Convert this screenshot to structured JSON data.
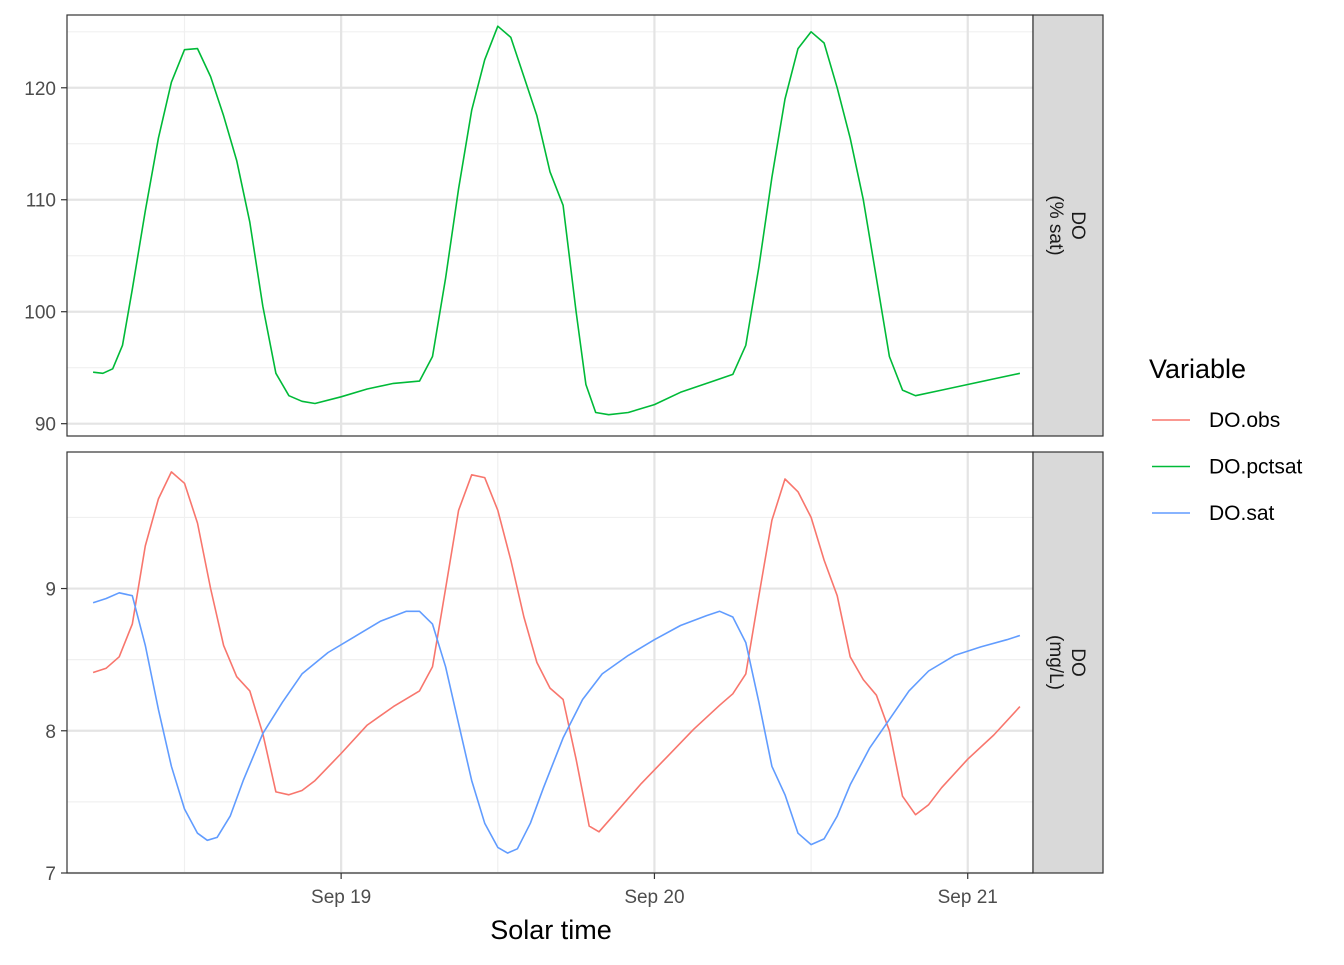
{
  "chart_data": {
    "type": "line",
    "xlabel": "Solar time",
    "x_ticks": [
      "Sep 19",
      "Sep 20",
      "Sep 21"
    ],
    "x_range": [
      "Sep 18 03:00",
      "Sep 21 05:00"
    ],
    "grid": true,
    "legend": {
      "title": "Variable",
      "placement": "right",
      "entries": [
        {
          "name": "DO.obs",
          "color": "#F8766D"
        },
        {
          "name": "DO.pctsat",
          "color": "#00BA38"
        },
        {
          "name": "DO.sat",
          "color": "#619CFF"
        }
      ]
    },
    "panels": [
      {
        "strip_label": [
          "DO",
          "(% sat)"
        ],
        "ylim": [
          88.9,
          126.5
        ],
        "y_ticks": [
          90,
          100,
          110,
          120
        ],
        "series": [
          {
            "name": "DO.pctsat",
            "color": "#00BA38",
            "points": [
              [
                "Sep 18 05:00",
                94.6
              ],
              [
                "Sep 18 05:45",
                94.5
              ],
              [
                "Sep 18 06:30",
                94.9
              ],
              [
                "Sep 18 07:15",
                97.0
              ],
              [
                "Sep 18 08:00",
                102.0
              ],
              [
                "Sep 18 09:00",
                109.0
              ],
              [
                "Sep 18 10:00",
                115.5
              ],
              [
                "Sep 18 11:00",
                120.5
              ],
              [
                "Sep 18 12:00",
                123.4
              ],
              [
                "Sep 18 13:00",
                123.5
              ],
              [
                "Sep 18 14:00",
                121.0
              ],
              [
                "Sep 18 15:00",
                117.5
              ],
              [
                "Sep 18 16:00",
                113.5
              ],
              [
                "Sep 18 17:00",
                108.0
              ],
              [
                "Sep 18 18:00",
                100.5
              ],
              [
                "Sep 18 19:00",
                94.5
              ],
              [
                "Sep 18 20:00",
                92.5
              ],
              [
                "Sep 18 21:00",
                92.0
              ],
              [
                "Sep 18 22:00",
                91.8
              ],
              [
                "Sep 19 00:00",
                92.4
              ],
              [
                "Sep 19 02:00",
                93.1
              ],
              [
                "Sep 19 04:00",
                93.6
              ],
              [
                "Sep 19 06:00",
                93.8
              ],
              [
                "Sep 19 07:00",
                96.0
              ],
              [
                "Sep 19 08:00",
                103.0
              ],
              [
                "Sep 19 09:00",
                111.0
              ],
              [
                "Sep 19 10:00",
                118.0
              ],
              [
                "Sep 19 11:00",
                122.5
              ],
              [
                "Sep 19 12:00",
                125.5
              ],
              [
                "Sep 19 13:00",
                124.5
              ],
              [
                "Sep 19 14:00",
                121.0
              ],
              [
                "Sep 19 15:00",
                117.5
              ],
              [
                "Sep 19 16:00",
                112.5
              ],
              [
                "Sep 19 17:00",
                109.5
              ],
              [
                "Sep 19 18:00",
                100.0
              ],
              [
                "Sep 19 18:45",
                93.5
              ],
              [
                "Sep 19 19:30",
                91.0
              ],
              [
                "Sep 19 20:30",
                90.8
              ],
              [
                "Sep 19 22:00",
                91.0
              ],
              [
                "Sep 20 00:00",
                91.7
              ],
              [
                "Sep 20 02:00",
                92.8
              ],
              [
                "Sep 20 04:00",
                93.6
              ],
              [
                "Sep 20 06:00",
                94.4
              ],
              [
                "Sep 20 07:00",
                97.0
              ],
              [
                "Sep 20 08:00",
                104.0
              ],
              [
                "Sep 20 09:00",
                112.0
              ],
              [
                "Sep 20 10:00",
                119.0
              ],
              [
                "Sep 20 11:00",
                123.5
              ],
              [
                "Sep 20 12:00",
                125.0
              ],
              [
                "Sep 20 13:00",
                124.0
              ],
              [
                "Sep 20 14:00",
                120.0
              ],
              [
                "Sep 20 15:00",
                115.5
              ],
              [
                "Sep 20 16:00",
                110.0
              ],
              [
                "Sep 20 17:00",
                103.0
              ],
              [
                "Sep 20 18:00",
                96.0
              ],
              [
                "Sep 20 19:00",
                93.0
              ],
              [
                "Sep 20 20:00",
                92.5
              ],
              [
                "Sep 20 22:00",
                93.0
              ],
              [
                "Sep 21 00:00",
                93.5
              ],
              [
                "Sep 21 02:00",
                94.0
              ],
              [
                "Sep 21 04:00",
                94.5
              ]
            ]
          }
        ]
      },
      {
        "strip_label": [
          "DO",
          "(mg/L)"
        ],
        "ylim": [
          7.0,
          9.96
        ],
        "y_ticks": [
          7,
          8,
          9
        ],
        "series": [
          {
            "name": "DO.obs",
            "color": "#F8766D",
            "points": [
              [
                "Sep 18 05:00",
                8.41
              ],
              [
                "Sep 18 06:00",
                8.44
              ],
              [
                "Sep 18 07:00",
                8.52
              ],
              [
                "Sep 18 08:00",
                8.75
              ],
              [
                "Sep 18 09:00",
                9.3
              ],
              [
                "Sep 18 10:00",
                9.63
              ],
              [
                "Sep 18 11:00",
                9.82
              ],
              [
                "Sep 18 12:00",
                9.74
              ],
              [
                "Sep 18 13:00",
                9.46
              ],
              [
                "Sep 18 14:00",
                9.0
              ],
              [
                "Sep 18 15:00",
                8.6
              ],
              [
                "Sep 18 16:00",
                8.38
              ],
              [
                "Sep 18 17:00",
                8.28
              ],
              [
                "Sep 18 18:00",
                7.98
              ],
              [
                "Sep 18 19:00",
                7.57
              ],
              [
                "Sep 18 20:00",
                7.55
              ],
              [
                "Sep 18 21:00",
                7.58
              ],
              [
                "Sep 18 22:00",
                7.65
              ],
              [
                "Sep 19 00:00",
                7.84
              ],
              [
                "Sep 19 02:00",
                8.04
              ],
              [
                "Sep 19 04:00",
                8.17
              ],
              [
                "Sep 19 06:00",
                8.28
              ],
              [
                "Sep 19 07:00",
                8.45
              ],
              [
                "Sep 19 08:00",
                9.0
              ],
              [
                "Sep 19 09:00",
                9.55
              ],
              [
                "Sep 19 10:00",
                9.8
              ],
              [
                "Sep 19 11:00",
                9.78
              ],
              [
                "Sep 19 12:00",
                9.55
              ],
              [
                "Sep 19 13:00",
                9.2
              ],
              [
                "Sep 19 14:00",
                8.8
              ],
              [
                "Sep 19 15:00",
                8.48
              ],
              [
                "Sep 19 16:00",
                8.3
              ],
              [
                "Sep 19 17:00",
                8.22
              ],
              [
                "Sep 19 18:00",
                7.8
              ],
              [
                "Sep 19 19:00",
                7.33
              ],
              [
                "Sep 19 19:45",
                7.29
              ],
              [
                "Sep 19 21:00",
                7.42
              ],
              [
                "Sep 19 23:00",
                7.63
              ],
              [
                "Sep 20 01:00",
                7.82
              ],
              [
                "Sep 20 03:00",
                8.01
              ],
              [
                "Sep 20 05:00",
                8.18
              ],
              [
                "Sep 20 06:00",
                8.26
              ],
              [
                "Sep 20 07:00",
                8.4
              ],
              [
                "Sep 20 08:00",
                8.95
              ],
              [
                "Sep 20 09:00",
                9.48
              ],
              [
                "Sep 20 10:00",
                9.77
              ],
              [
                "Sep 20 11:00",
                9.68
              ],
              [
                "Sep 20 12:00",
                9.5
              ],
              [
                "Sep 20 13:00",
                9.2
              ],
              [
                "Sep 20 14:00",
                8.95
              ],
              [
                "Sep 20 15:00",
                8.52
              ],
              [
                "Sep 20 16:00",
                8.36
              ],
              [
                "Sep 20 17:00",
                8.25
              ],
              [
                "Sep 20 18:00",
                8.0
              ],
              [
                "Sep 20 19:00",
                7.54
              ],
              [
                "Sep 20 20:00",
                7.41
              ],
              [
                "Sep 20 21:00",
                7.48
              ],
              [
                "Sep 20 22:00",
                7.6
              ],
              [
                "Sep 21 00:00",
                7.8
              ],
              [
                "Sep 21 02:00",
                7.97
              ],
              [
                "Sep 21 04:00",
                8.17
              ]
            ]
          },
          {
            "name": "DO.sat",
            "color": "#619CFF",
            "points": [
              [
                "Sep 18 05:00",
                8.9
              ],
              [
                "Sep 18 06:00",
                8.93
              ],
              [
                "Sep 18 07:00",
                8.97
              ],
              [
                "Sep 18 08:00",
                8.95
              ],
              [
                "Sep 18 09:00",
                8.6
              ],
              [
                "Sep 18 10:00",
                8.15
              ],
              [
                "Sep 18 11:00",
                7.75
              ],
              [
                "Sep 18 12:00",
                7.45
              ],
              [
                "Sep 18 13:00",
                7.28
              ],
              [
                "Sep 18 13:45",
                7.23
              ],
              [
                "Sep 18 14:30",
                7.25
              ],
              [
                "Sep 18 15:30",
                7.4
              ],
              [
                "Sep 18 16:30",
                7.65
              ],
              [
                "Sep 18 18:00",
                7.98
              ],
              [
                "Sep 18 19:30",
                8.2
              ],
              [
                "Sep 18 21:00",
                8.4
              ],
              [
                "Sep 18 23:00",
                8.55
              ],
              [
                "Sep 19 01:00",
                8.66
              ],
              [
                "Sep 19 03:00",
                8.77
              ],
              [
                "Sep 19 05:00",
                8.84
              ],
              [
                "Sep 19 06:00",
                8.84
              ],
              [
                "Sep 19 07:00",
                8.75
              ],
              [
                "Sep 19 08:00",
                8.45
              ],
              [
                "Sep 19 09:00",
                8.05
              ],
              [
                "Sep 19 10:00",
                7.65
              ],
              [
                "Sep 19 11:00",
                7.35
              ],
              [
                "Sep 19 12:00",
                7.18
              ],
              [
                "Sep 19 12:45",
                7.14
              ],
              [
                "Sep 19 13:30",
                7.17
              ],
              [
                "Sep 19 14:30",
                7.35
              ],
              [
                "Sep 19 15:30",
                7.6
              ],
              [
                "Sep 19 17:00",
                7.95
              ],
              [
                "Sep 19 18:30",
                8.22
              ],
              [
                "Sep 19 20:00",
                8.4
              ],
              [
                "Sep 19 22:00",
                8.53
              ],
              [
                "Sep 20 00:00",
                8.64
              ],
              [
                "Sep 20 02:00",
                8.74
              ],
              [
                "Sep 20 04:00",
                8.81
              ],
              [
                "Sep 20 05:00",
                8.84
              ],
              [
                "Sep 20 06:00",
                8.8
              ],
              [
                "Sep 20 07:00",
                8.62
              ],
              [
                "Sep 20 08:00",
                8.2
              ],
              [
                "Sep 20 09:00",
                7.75
              ],
              [
                "Sep 20 10:00",
                7.55
              ],
              [
                "Sep 20 11:00",
                7.28
              ],
              [
                "Sep 20 12:00",
                7.2
              ],
              [
                "Sep 20 13:00",
                7.24
              ],
              [
                "Sep 20 14:00",
                7.4
              ],
              [
                "Sep 20 15:00",
                7.62
              ],
              [
                "Sep 20 16:30",
                7.88
              ],
              [
                "Sep 20 18:00",
                8.08
              ],
              [
                "Sep 20 19:30",
                8.28
              ],
              [
                "Sep 20 21:00",
                8.42
              ],
              [
                "Sep 20 23:00",
                8.53
              ],
              [
                "Sep 21 01:00",
                8.59
              ],
              [
                "Sep 21 03:00",
                8.64
              ],
              [
                "Sep 21 04:00",
                8.67
              ]
            ]
          }
        ]
      }
    ]
  }
}
